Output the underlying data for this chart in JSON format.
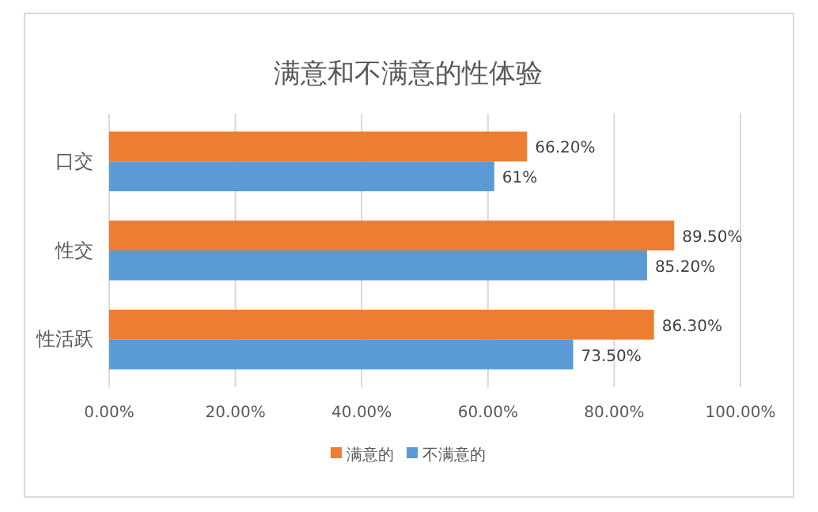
{
  "chart_data": {
    "type": "bar",
    "orientation": "horizontal",
    "title": "满意和不满意的性体验",
    "categories": [
      "口交",
      "性交",
      "性活跃"
    ],
    "series": [
      {
        "name": "满意的",
        "color": "#ed7d31",
        "values": [
          66.2,
          89.5,
          86.3
        ],
        "value_labels": [
          "66.20%",
          "89.50%",
          "86.30%"
        ]
      },
      {
        "name": "不满意的",
        "color": "#5b9bd5",
        "values": [
          61,
          85.2,
          73.5
        ],
        "value_labels": [
          "61%",
          "85.20%",
          "73.50%"
        ]
      }
    ],
    "xlim": [
      0,
      100
    ],
    "xticks": [
      {
        "value": 0,
        "label": "0.00%"
      },
      {
        "value": 20,
        "label": "20.00%"
      },
      {
        "value": 40,
        "label": "40.00%"
      },
      {
        "value": 60,
        "label": "60.00%"
      },
      {
        "value": 80,
        "label": "80.00%"
      },
      {
        "value": 100,
        "label": "100.00%"
      }
    ],
    "grid": "x",
    "legend": "bottom"
  }
}
